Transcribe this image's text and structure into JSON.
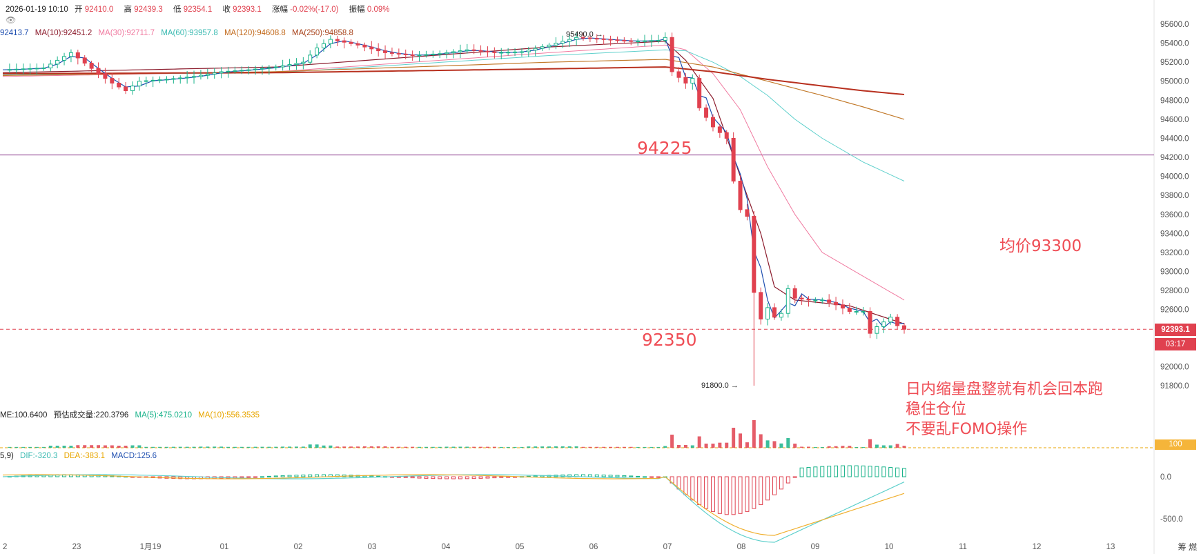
{
  "header": {
    "datetime": "2026-01-19 10:10",
    "open_label": "开",
    "open": "92410.0",
    "high_label": "高",
    "high": "92439.3",
    "low_label": "低",
    "low": "92354.1",
    "close_label": "收",
    "close": "92393.1",
    "change_label": "涨幅",
    "change": "-0.02%(-17.0)",
    "amplitude_label": "振幅",
    "amplitude": "0.09%"
  },
  "ma_legend": {
    "ma5": "92413.7",
    "ma10": "MA(10):92451.2",
    "ma30": "MA(30):92711.7",
    "ma60": "MA(60):93957.8",
    "ma120": "MA(120):94608.8",
    "ma250": "MA(250):94858.8"
  },
  "volume_legend": {
    "volume": "ME:100.6400",
    "estimated": "预估成交量:220.3796",
    "ma5": "MA(5):475.0210",
    "ma10": "MA(10):556.3535"
  },
  "macd_legend": {
    "params": "5,9)",
    "dif": "DIF:-320.3",
    "dea": "DEA:-383.1",
    "macd": "MACD:125.6"
  },
  "annotations": {
    "resistance_price": "94225",
    "support_price": "92350",
    "avg_price_note": "均价93300",
    "note_line1": "日内缩量盘整就有机会回本跑",
    "note_line2": "稳住仓位",
    "note_line3": "不要乱FOMO操作",
    "high_marker": "95490.0",
    "low_marker": "91800.0"
  },
  "price_tag": {
    "price": "92393.1",
    "countdown": "03:17"
  },
  "volume_tag": "100",
  "icons": [
    "eye-icon",
    "settings-icon"
  ],
  "bottom_right_text": "筹 燃",
  "colors": {
    "up": "#19b38a",
    "down": "#e0414f",
    "ma5": "#1f4fb0",
    "ma10": "#8b1a2b",
    "ma30": "#f07aa0",
    "ma60": "#5fd0cc",
    "ma120": "#c27a2b",
    "ma250": "#b8301f",
    "level_line": "#8a3a8c",
    "dif": "#5fd0cc",
    "dea": "#f0b030"
  },
  "chart_data": {
    "type": "candlestick",
    "timeframe_hint": "10-minute",
    "x_ticks": [
      "2",
      "23",
      "1月19",
      "01",
      "02",
      "03",
      "04",
      "05",
      "06",
      "07",
      "08",
      "09",
      "10",
      "11",
      "12",
      "13"
    ],
    "y_ticks": [
      "95600.0",
      "95400.0",
      "95200.0",
      "95000.0",
      "94800.0",
      "94600.0",
      "94400.0",
      "94200.0",
      "94000.0",
      "93800.0",
      "93600.0",
      "93400.0",
      "93200.0",
      "93000.0",
      "92800.0",
      "92600.0",
      "92400.0",
      "92200.0",
      "92000.0",
      "91800.0"
    ],
    "ylim": [
      91800,
      95600
    ],
    "macd_ticks": [
      "0.0",
      "-500.0"
    ],
    "levels": [
      94225,
      92350
    ],
    "current_price": 92393.1,
    "period_high": 95490.0,
    "period_low": 91800.0,
    "close_path": [
      [
        0,
        95120
      ],
      [
        6,
        95140
      ],
      [
        10,
        95300
      ],
      [
        14,
        95080
      ],
      [
        16,
        94980
      ],
      [
        18,
        94900
      ],
      [
        20,
        95000
      ],
      [
        24,
        95020
      ],
      [
        28,
        95050
      ],
      [
        32,
        95100
      ],
      [
        36,
        95120
      ],
      [
        40,
        95150
      ],
      [
        44,
        95200
      ],
      [
        46,
        95350
      ],
      [
        48,
        95440
      ],
      [
        52,
        95380
      ],
      [
        56,
        95300
      ],
      [
        60,
        95270
      ],
      [
        64,
        95290
      ],
      [
        68,
        95330
      ],
      [
        72,
        95300
      ],
      [
        76,
        95310
      ],
      [
        80,
        95380
      ],
      [
        84,
        95460
      ],
      [
        88,
        95440
      ],
      [
        92,
        95420
      ],
      [
        96,
        95430
      ],
      [
        97,
        95460
      ],
      [
        98,
        95100
      ],
      [
        100,
        94980
      ],
      [
        101,
        95030
      ],
      [
        102,
        94720
      ],
      [
        104,
        94520
      ],
      [
        106,
        94400
      ],
      [
        107,
        93950
      ],
      [
        108,
        93650
      ],
      [
        109,
        93580
      ],
      [
        110,
        92780
      ],
      [
        111,
        92500
      ],
      [
        112,
        92620
      ],
      [
        113,
        92520
      ],
      [
        114,
        92560
      ],
      [
        115,
        92820
      ],
      [
        116,
        92720
      ],
      [
        118,
        92700
      ],
      [
        120,
        92700
      ],
      [
        122,
        92650
      ],
      [
        124,
        92580
      ],
      [
        126,
        92580
      ],
      [
        127,
        92350
      ],
      [
        128,
        92420
      ],
      [
        130,
        92520
      ],
      [
        131,
        92430
      ],
      [
        132,
        92393
      ]
    ],
    "ma_series": [
      {
        "name": "MA(10)",
        "path": [
          [
            0,
            95090
          ],
          [
            40,
            95150
          ],
          [
            80,
            95360
          ],
          [
            97,
            95420
          ],
          [
            100,
            95220
          ],
          [
            104,
            94820
          ],
          [
            108,
            94000
          ],
          [
            111,
            93400
          ],
          [
            113,
            92840
          ],
          [
            116,
            92700
          ],
          [
            124,
            92640
          ],
          [
            132,
            92450
          ]
        ]
      },
      {
        "name": "MA(30)",
        "path": [
          [
            0,
            95050
          ],
          [
            40,
            95100
          ],
          [
            80,
            95300
          ],
          [
            97,
            95380
          ],
          [
            100,
            95330
          ],
          [
            104,
            95080
          ],
          [
            108,
            94700
          ],
          [
            112,
            94100
          ],
          [
            116,
            93600
          ],
          [
            120,
            93200
          ],
          [
            126,
            92950
          ],
          [
            132,
            92700
          ]
        ]
      },
      {
        "name": "MA(60)",
        "path": [
          [
            0,
            95070
          ],
          [
            40,
            95090
          ],
          [
            80,
            95270
          ],
          [
            97,
            95330
          ],
          [
            100,
            95320
          ],
          [
            104,
            95200
          ],
          [
            108,
            95050
          ],
          [
            112,
            94850
          ],
          [
            116,
            94600
          ],
          [
            120,
            94400
          ],
          [
            126,
            94150
          ],
          [
            132,
            93950
          ]
        ]
      },
      {
        "name": "MA(120)",
        "path": [
          [
            0,
            95060
          ],
          [
            40,
            95100
          ],
          [
            80,
            95200
          ],
          [
            97,
            95230
          ],
          [
            104,
            95150
          ],
          [
            112,
            95000
          ],
          [
            120,
            94850
          ],
          [
            126,
            94730
          ],
          [
            132,
            94600
          ]
        ]
      },
      {
        "name": "MA(250)",
        "path": [
          [
            0,
            95080
          ],
          [
            40,
            95090
          ],
          [
            80,
            95130
          ],
          [
            97,
            95150
          ],
          [
            104,
            95100
          ],
          [
            112,
            95020
          ],
          [
            120,
            94950
          ],
          [
            126,
            94900
          ],
          [
            132,
            94860
          ]
        ]
      }
    ]
  }
}
